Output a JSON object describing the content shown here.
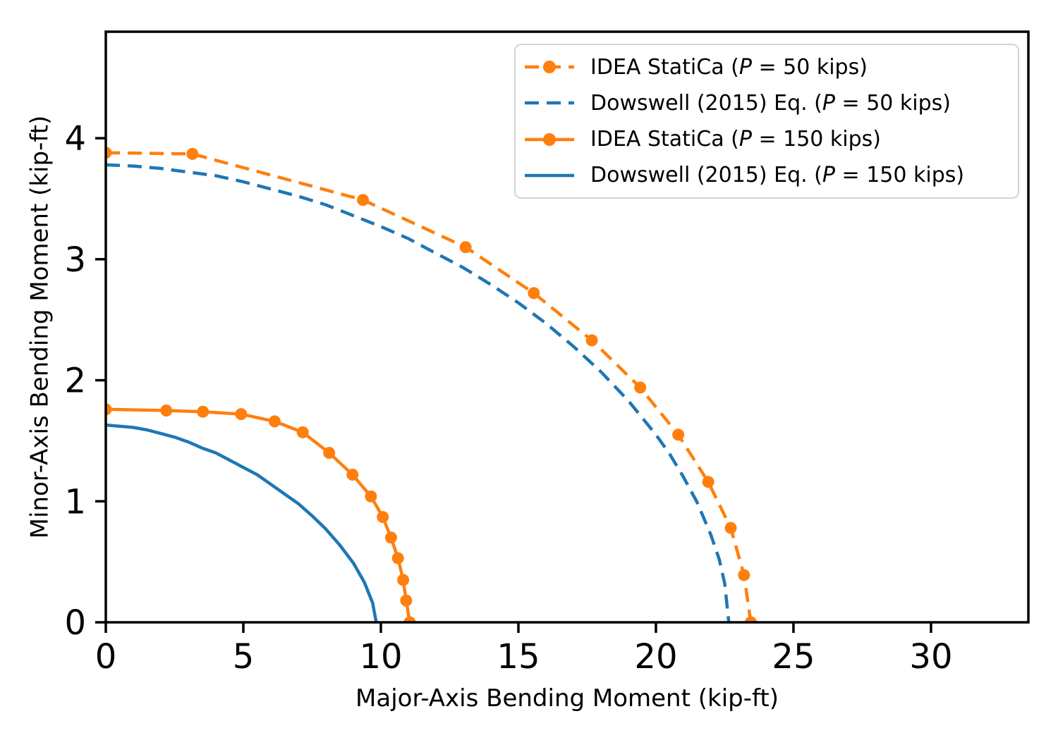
{
  "chart_data": {
    "type": "line",
    "title": "",
    "xlabel": "Major-Axis Bending Moment (kip-ft)",
    "ylabel": "Minor-Axis Bending Moment (kip-ft)",
    "xlim": [
      0,
      33.54
    ],
    "ylim": [
      0,
      4.88
    ],
    "xticks": [
      0,
      5,
      10,
      15,
      20,
      25,
      30
    ],
    "yticks": [
      0,
      1,
      2,
      3,
      4
    ],
    "grid": false,
    "legend_position": "upper right",
    "colors": {
      "orange": "#ff7f0e",
      "blue": "#1f77b4",
      "spine": "#000000",
      "legend_border": "#d4d4d4"
    },
    "series": [
      {
        "name": "IDEA StatiCa (P = 50 kips)",
        "color": "#ff7f0e",
        "linestyle": "dashed",
        "marker": "circle",
        "points": [
          [
            0,
            3.88
          ],
          [
            3.15,
            3.87
          ],
          [
            9.35,
            3.49
          ],
          [
            13.08,
            3.1
          ],
          [
            15.56,
            2.72
          ],
          [
            17.67,
            2.33
          ],
          [
            19.43,
            1.94
          ],
          [
            20.81,
            1.55
          ],
          [
            21.9,
            1.16
          ],
          [
            22.72,
            0.78
          ],
          [
            23.2,
            0.39
          ],
          [
            23.45,
            0
          ]
        ]
      },
      {
        "name": "Dowswell (2015) Eq. (P = 50 kips)",
        "color": "#1f77b4",
        "linestyle": "dashed",
        "marker": "none",
        "points": [
          [
            0,
            3.78
          ],
          [
            1,
            3.77
          ],
          [
            2,
            3.75
          ],
          [
            3,
            3.72
          ],
          [
            4,
            3.69
          ],
          [
            5,
            3.64
          ],
          [
            6,
            3.58
          ],
          [
            7,
            3.52
          ],
          [
            8,
            3.45
          ],
          [
            9,
            3.36
          ],
          [
            10,
            3.27
          ],
          [
            11,
            3.17
          ],
          [
            12,
            3.05
          ],
          [
            13,
            2.93
          ],
          [
            14,
            2.79
          ],
          [
            15,
            2.64
          ],
          [
            16,
            2.47
          ],
          [
            17,
            2.28
          ],
          [
            18,
            2.07
          ],
          [
            19,
            1.83
          ],
          [
            20,
            1.55
          ],
          [
            20.5,
            1.39
          ],
          [
            21,
            1.2
          ],
          [
            21.5,
            0.99
          ],
          [
            22,
            0.72
          ],
          [
            22.3,
            0.52
          ],
          [
            22.5,
            0.32
          ],
          [
            22.65,
            0
          ]
        ]
      },
      {
        "name": "IDEA StatiCa (P = 150 kips)",
        "color": "#ff7f0e",
        "linestyle": "solid",
        "marker": "circle",
        "points": [
          [
            0,
            1.76
          ],
          [
            2.2,
            1.75
          ],
          [
            3.53,
            1.74
          ],
          [
            4.92,
            1.72
          ],
          [
            6.14,
            1.66
          ],
          [
            7.16,
            1.57
          ],
          [
            8.12,
            1.4
          ],
          [
            8.97,
            1.22
          ],
          [
            9.64,
            1.04
          ],
          [
            10.07,
            0.87
          ],
          [
            10.37,
            0.7
          ],
          [
            10.62,
            0.53
          ],
          [
            10.81,
            0.35
          ],
          [
            10.92,
            0.18
          ],
          [
            11.05,
            0
          ]
        ]
      },
      {
        "name": "Dowswell (2015) Eq. (P = 150 kips)",
        "color": "#1f77b4",
        "linestyle": "solid",
        "marker": "none",
        "points": [
          [
            0,
            1.63
          ],
          [
            0.5,
            1.62
          ],
          [
            1,
            1.61
          ],
          [
            1.5,
            1.59
          ],
          [
            2,
            1.56
          ],
          [
            2.5,
            1.53
          ],
          [
            3,
            1.49
          ],
          [
            3.5,
            1.44
          ],
          [
            4,
            1.4
          ],
          [
            4.5,
            1.34
          ],
          [
            5,
            1.28
          ],
          [
            5.5,
            1.22
          ],
          [
            6,
            1.14
          ],
          [
            6.5,
            1.06
          ],
          [
            7,
            0.98
          ],
          [
            7.5,
            0.88
          ],
          [
            8,
            0.77
          ],
          [
            8.5,
            0.64
          ],
          [
            9,
            0.49
          ],
          [
            9.4,
            0.33
          ],
          [
            9.7,
            0.16
          ],
          [
            9.83,
            0
          ]
        ]
      }
    ]
  }
}
